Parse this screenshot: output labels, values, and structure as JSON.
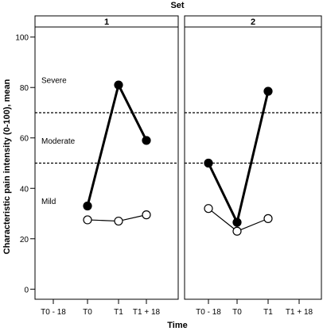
{
  "chart_data": {
    "type": "line",
    "title": "Set",
    "xlabel": "Time",
    "ylabel": "Characteristic pain intensity (0-100), mean",
    "ylim": [
      -4,
      104
    ],
    "yticks": [
      0,
      20,
      40,
      60,
      80,
      100
    ],
    "categories": [
      "T0 - 18",
      "T0",
      "T1",
      "T1 + 18"
    ],
    "thresholds": [
      50,
      70
    ],
    "zone_labels": [
      {
        "text": "Severe",
        "y": 83
      },
      {
        "text": "Moderate",
        "y": 59
      },
      {
        "text": "Mild",
        "y": 35
      }
    ],
    "panels": [
      {
        "title": "1",
        "series": [
          {
            "marker": "filled",
            "values": [
              null,
              33,
              81,
              59
            ]
          },
          {
            "marker": "open",
            "values": [
              null,
              27.5,
              27,
              29.5
            ]
          }
        ]
      },
      {
        "title": "2",
        "series": [
          {
            "marker": "filled",
            "values": [
              50,
              26.5,
              78.5,
              null
            ]
          },
          {
            "marker": "open",
            "values": [
              32,
              23,
              28,
              null
            ]
          }
        ]
      }
    ]
  }
}
